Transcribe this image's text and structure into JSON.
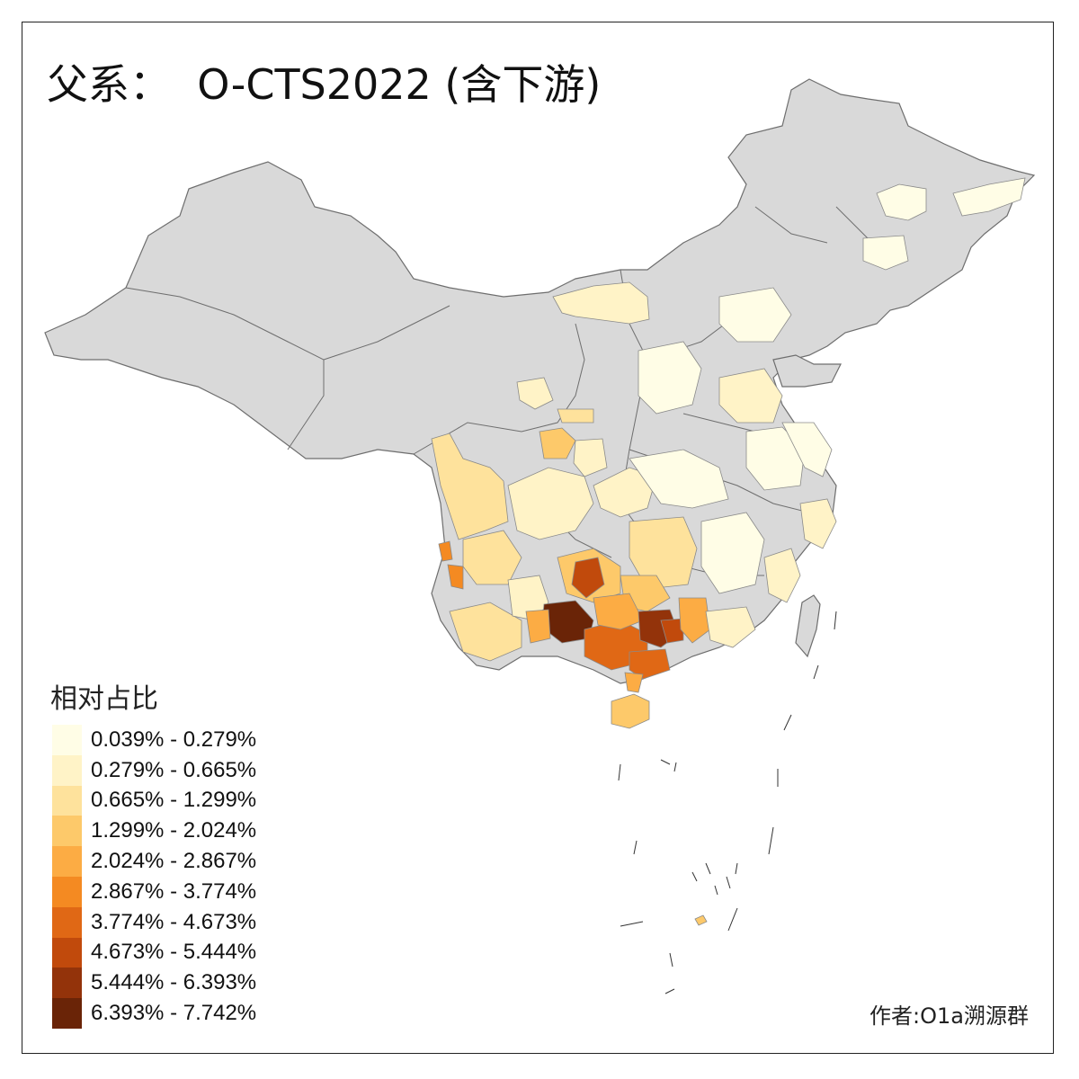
{
  "title": "父系：  O-CTS2022 (含下游)",
  "legend": {
    "title": "相对占比",
    "classes": [
      {
        "label": "0.039% - 0.279%",
        "color": "#fffde6"
      },
      {
        "label": "0.279% - 0.665%",
        "color": "#fff3c7"
      },
      {
        "label": "0.665% - 1.299%",
        "color": "#fee29c"
      },
      {
        "label": "1.299% - 2.024%",
        "color": "#fdc96a"
      },
      {
        "label": "2.024% - 2.867%",
        "color": "#fcac44"
      },
      {
        "label": "2.867% - 3.774%",
        "color": "#f48a22"
      },
      {
        "label": "3.774% - 4.673%",
        "color": "#e06815"
      },
      {
        "label": "4.673% - 5.444%",
        "color": "#c14a0c"
      },
      {
        "label": "5.444% - 6.393%",
        "color": "#93330a"
      },
      {
        "label": "6.393% - 7.742%",
        "color": "#6a2407"
      }
    ]
  },
  "no_data_color": "#d9d9d9",
  "credit": "作者:O1a溯源群"
}
